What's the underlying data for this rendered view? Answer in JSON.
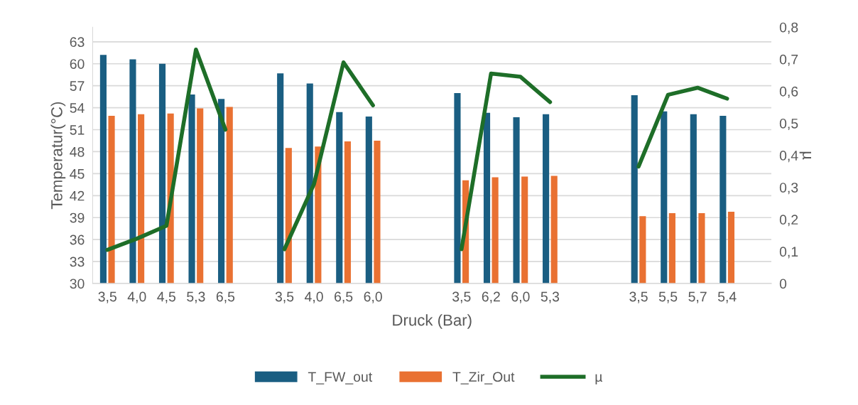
{
  "chart_data": {
    "type": "bar",
    "xlabel": "Druck (Bar)",
    "ylabel": "Temperatur(°C)",
    "y2label": "µ",
    "categories": [
      "3,5",
      "4,0",
      "4,5",
      "5,3",
      "6,5",
      null,
      "3,5",
      "4,0",
      "6,5",
      "6,0",
      null,
      null,
      "3,5",
      "6,2",
      "6,0",
      "5,3",
      null,
      null,
      "3,5",
      "5,5",
      "5,7",
      "5,4",
      null
    ],
    "series": [
      {
        "name": "T_FW_out",
        "color": "#1a5e82",
        "values": [
          61.2,
          60.6,
          60.0,
          55.8,
          55.2,
          null,
          58.7,
          57.3,
          53.4,
          52.8,
          null,
          null,
          56.0,
          53.3,
          52.7,
          53.1,
          null,
          null,
          55.7,
          53.5,
          53.1,
          52.9,
          null
        ]
      },
      {
        "name": "T_Zir_Out",
        "color": "#e97132",
        "values": [
          52.9,
          53.1,
          53.2,
          53.9,
          54.1,
          null,
          48.5,
          48.7,
          49.4,
          49.5,
          null,
          null,
          44.1,
          44.5,
          44.6,
          44.7,
          null,
          null,
          39.2,
          39.6,
          39.6,
          39.8,
          null
        ]
      },
      {
        "name": "µ",
        "color": "#1e6e28",
        "type": "line",
        "axis": "y2",
        "values": [
          0.105,
          0.14,
          0.18,
          0.73,
          0.48,
          null,
          0.107,
          0.31,
          0.69,
          0.556,
          null,
          null,
          0.107,
          0.655,
          0.645,
          0.566,
          null,
          null,
          0.365,
          0.589,
          0.611,
          0.577,
          null
        ]
      }
    ],
    "ylim": [
      30,
      65
    ],
    "yticks": [
      30,
      33,
      36,
      39,
      42,
      45,
      48,
      51,
      54,
      57,
      60,
      63
    ],
    "y2lim": [
      0,
      0.8
    ],
    "y2ticks": [
      {
        "value": 0,
        "label": "0"
      },
      {
        "value": 0.1,
        "label": "0,1"
      },
      {
        "value": 0.2,
        "label": "0,2"
      },
      {
        "value": 0.3,
        "label": "0,3"
      },
      {
        "value": 0.4,
        "label": "0,4"
      },
      {
        "value": 0.5,
        "label": "0,5"
      },
      {
        "value": 0.6,
        "label": "0,6"
      },
      {
        "value": 0.7,
        "label": "0,7"
      },
      {
        "value": 0.8,
        "label": "0,8"
      }
    ],
    "grid": "y",
    "legend": "bottom",
    "marker": "none",
    "line_style": "solid"
  }
}
